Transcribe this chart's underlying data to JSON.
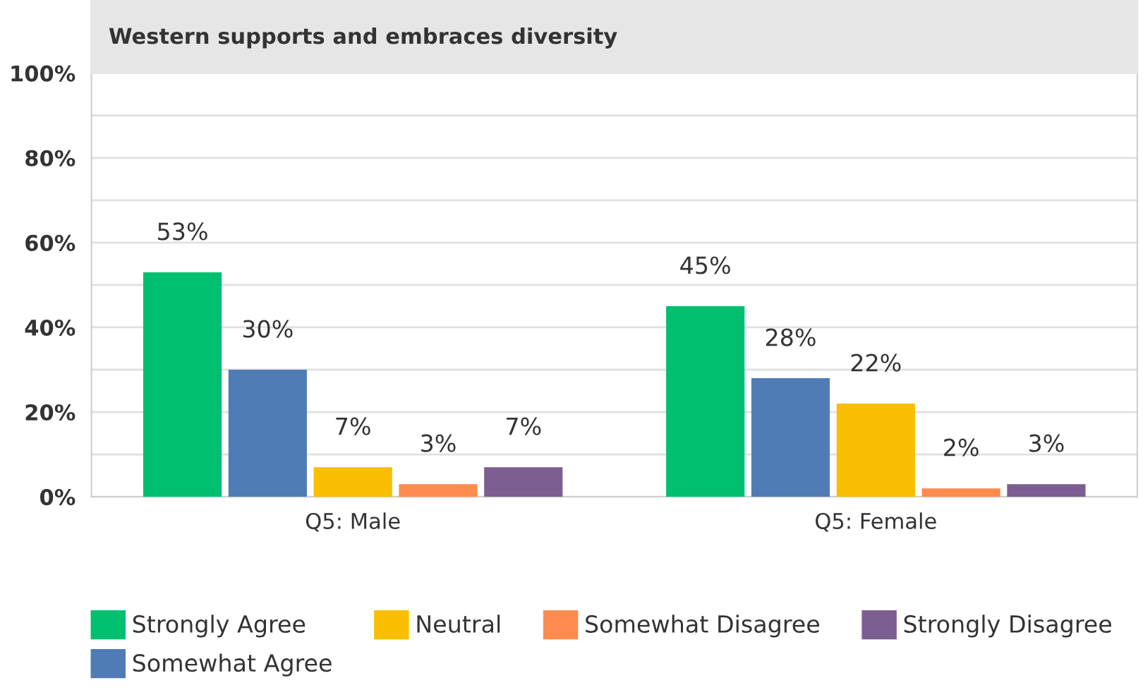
{
  "chart_data": {
    "type": "bar",
    "title": "Western supports and embraces diversity",
    "categories": [
      "Q5: Male",
      "Q5: Female"
    ],
    "series": [
      {
        "name": "Strongly Agree",
        "color": "#00bf6f",
        "values": [
          53,
          45
        ]
      },
      {
        "name": "Somewhat Agree",
        "color": "#507cb6",
        "values": [
          30,
          28
        ]
      },
      {
        "name": "Neutral",
        "color": "#f9be00",
        "values": [
          7,
          22
        ]
      },
      {
        "name": "Somewhat Disagree",
        "color": "#ff8b4f",
        "values": [
          3,
          2
        ]
      },
      {
        "name": "Strongly Disagree",
        "color": "#7d5e90",
        "values": [
          7,
          3
        ]
      }
    ],
    "ylim": [
      0,
      100
    ],
    "yticks": [
      {
        "value": 0,
        "label": "0%"
      },
      {
        "value": 10,
        "label": null
      },
      {
        "value": 20,
        "label": "20%"
      },
      {
        "value": 30,
        "label": null
      },
      {
        "value": 40,
        "label": "40%"
      },
      {
        "value": 50,
        "label": null
      },
      {
        "value": 60,
        "label": "60%"
      },
      {
        "value": 70,
        "label": null
      },
      {
        "value": 80,
        "label": "80%"
      },
      {
        "value": 90,
        "label": null
      },
      {
        "value": 100,
        "label": "100%"
      }
    ],
    "value_labels": [
      [
        "53%",
        "45%"
      ],
      [
        "30%",
        "28%"
      ],
      [
        "7%",
        "22%"
      ],
      [
        "3%",
        "2%"
      ],
      [
        "7%",
        "3%"
      ]
    ],
    "grid": "y",
    "legend": "bottom"
  }
}
